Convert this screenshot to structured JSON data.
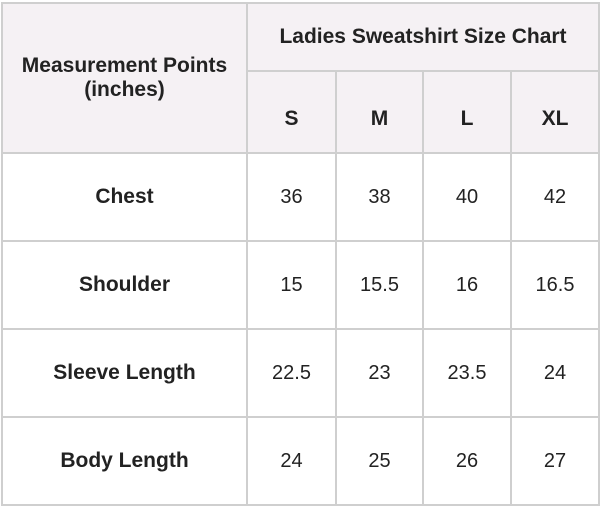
{
  "table": {
    "row_header_title": "Measurement Points",
    "row_header_unit": "(inches)",
    "title": "Ladies Sweatshirt Size Chart",
    "sizes": [
      "S",
      "M",
      "L",
      "XL"
    ],
    "rows": [
      {
        "label": "Chest",
        "values": [
          "36",
          "38",
          "40",
          "42"
        ]
      },
      {
        "label": "Shoulder",
        "values": [
          "15",
          "15.5",
          "16",
          "16.5"
        ]
      },
      {
        "label": "Sleeve Length",
        "values": [
          "22.5",
          "23",
          "23.5",
          "24"
        ]
      },
      {
        "label": "Body Length",
        "values": [
          "24",
          "25",
          "26",
          "27"
        ]
      }
    ]
  },
  "colors": {
    "header_background": "#f5f1f4",
    "border": "#cfcfcf",
    "text": "#222222"
  }
}
